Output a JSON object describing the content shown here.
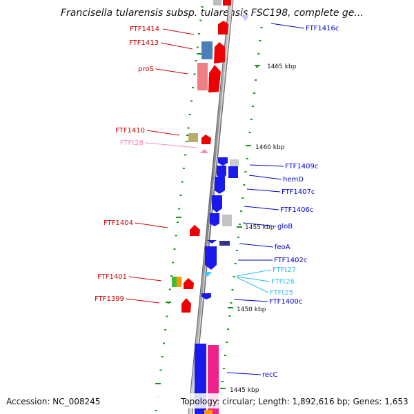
{
  "title": "Francisella tularensis subsp. tularensis FSC198, complete ge...",
  "footer": {
    "accession": "Accession: NC_008245",
    "topology": "Topology: circular; Length: 1,892,616 bp; Genes: 1,653"
  },
  "colors": {
    "plus_strand_gene": "#ff0000",
    "minus_strand_gene": "#0000ee",
    "trna": "#33ccff",
    "pseudo_rna": "#ff99cc",
    "backbone": "#888888"
  },
  "scale_labels": [
    "1465 kbp",
    "1460 kbp",
    "1455 kbp",
    "1450 kbp",
    "1445 kbp"
  ],
  "left_labels": [
    {
      "text": "FTF1414",
      "color": "#cc0000"
    },
    {
      "text": "FTF1413",
      "color": "#cc0000"
    },
    {
      "text": "proS",
      "color": "#cc0000"
    },
    {
      "text": "FTF1410",
      "color": "#cc0000"
    },
    {
      "text": "FTFt28",
      "color": "#ff88bb"
    },
    {
      "text": "FTF1404",
      "color": "#cc0000"
    },
    {
      "text": "FTF1401",
      "color": "#cc0000"
    },
    {
      "text": "FTF1399",
      "color": "#cc0000"
    }
  ],
  "right_labels": [
    {
      "text": "FTF1416c",
      "color": "#0000cc"
    },
    {
      "text": "FTF1409c",
      "color": "#0000cc"
    },
    {
      "text": "hemD",
      "color": "#0000cc"
    },
    {
      "text": "FTF1407c",
      "color": "#0000cc"
    },
    {
      "text": "FTF1406c",
      "color": "#0000cc"
    },
    {
      "text": "gloB",
      "color": "#0000cc"
    },
    {
      "text": "feoA",
      "color": "#0000cc"
    },
    {
      "text": "FTF1402c",
      "color": "#0000cc"
    },
    {
      "text": "FTFt27",
      "color": "#33bbee"
    },
    {
      "text": "FTFt26",
      "color": "#33bbee"
    },
    {
      "text": "FTFt25",
      "color": "#33bbee"
    },
    {
      "text": "FTF1400c",
      "color": "#0000cc"
    },
    {
      "text": "recC",
      "color": "#0000cc"
    }
  ]
}
